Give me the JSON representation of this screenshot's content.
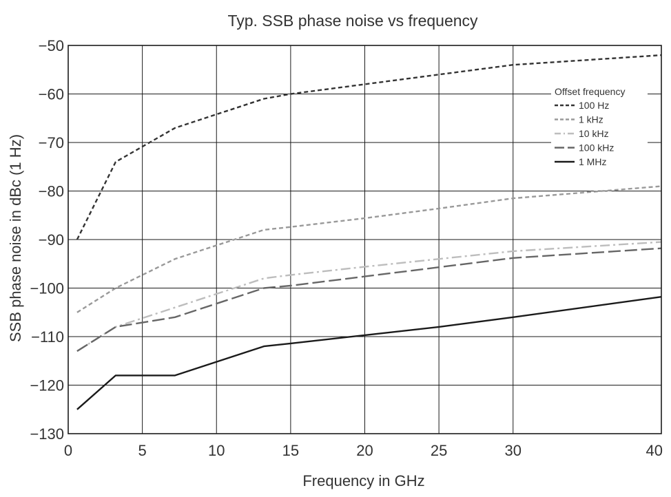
{
  "chart_data": {
    "type": "line",
    "title": "Typ. SSB phase noise vs frequency",
    "xlabel": "Frequency in GHz",
    "ylabel": "SSB phase noise in dBc (1 Hz)",
    "xlim": [
      0,
      40
    ],
    "ylim": [
      -130,
      -50
    ],
    "xticks": [
      0,
      5,
      10,
      15,
      20,
      25,
      30,
      40
    ],
    "xtick_labels": [
      "0",
      "5",
      "10",
      "15",
      "20",
      "25",
      "30",
      "40"
    ],
    "yticks": [
      -130,
      -120,
      -110,
      -100,
      -90,
      -80,
      -70,
      -60,
      -50
    ],
    "ytick_labels": [
      "−130",
      "−120",
      "−110",
      "−100",
      "−90",
      "−80",
      "−70",
      "−60",
      "−50"
    ],
    "grid": true,
    "legend": {
      "title": "Offset frequency",
      "position": "top-right"
    },
    "series": [
      {
        "name": "100 Hz",
        "color": "#333333",
        "dash": "short-dash",
        "points": [
          [
            0.6,
            -90
          ],
          [
            3.2,
            -74
          ],
          [
            7.2,
            -67
          ],
          [
            13.2,
            -61
          ],
          [
            15,
            -60
          ],
          [
            20,
            -58
          ],
          [
            25,
            -56
          ],
          [
            30,
            -54
          ],
          [
            40,
            -52
          ]
        ]
      },
      {
        "name": "1 kHz",
        "color": "#999999",
        "dash": "short-dash",
        "points": [
          [
            0.6,
            -105
          ],
          [
            3.2,
            -100
          ],
          [
            7.2,
            -94
          ],
          [
            13.2,
            -88
          ],
          [
            15,
            -87.4
          ],
          [
            20,
            -85.6
          ],
          [
            25,
            -83.6
          ],
          [
            30,
            -81.5
          ],
          [
            40,
            -79
          ]
        ]
      },
      {
        "name": "10 kHz",
        "color": "#bdbdbd",
        "dash": "dash-dot",
        "points": [
          [
            0.6,
            -113
          ],
          [
            3.2,
            -108
          ],
          [
            7.2,
            -104
          ],
          [
            13.2,
            -98
          ],
          [
            15,
            -97.3
          ],
          [
            20,
            -95.6
          ],
          [
            25,
            -94
          ],
          [
            30,
            -92.4
          ],
          [
            40,
            -90.5
          ]
        ]
      },
      {
        "name": "100 kHz",
        "color": "#666666",
        "dash": "long-dash",
        "points": [
          [
            0.6,
            -113
          ],
          [
            3.2,
            -108
          ],
          [
            7.2,
            -106
          ],
          [
            13.2,
            -100
          ],
          [
            15,
            -99.5
          ],
          [
            20,
            -97.6
          ],
          [
            25,
            -95.7
          ],
          [
            30,
            -93.8
          ],
          [
            40,
            -91.8
          ]
        ]
      },
      {
        "name": "1 MHz",
        "color": "#1a1a1a",
        "dash": "solid",
        "points": [
          [
            0.6,
            -125
          ],
          [
            3.2,
            -118
          ],
          [
            7.2,
            -118
          ],
          [
            13.2,
            -112
          ],
          [
            15,
            -111.4
          ],
          [
            20,
            -109.7
          ],
          [
            25,
            -108
          ],
          [
            30,
            -106
          ],
          [
            40,
            -101.8
          ]
        ]
      }
    ]
  }
}
